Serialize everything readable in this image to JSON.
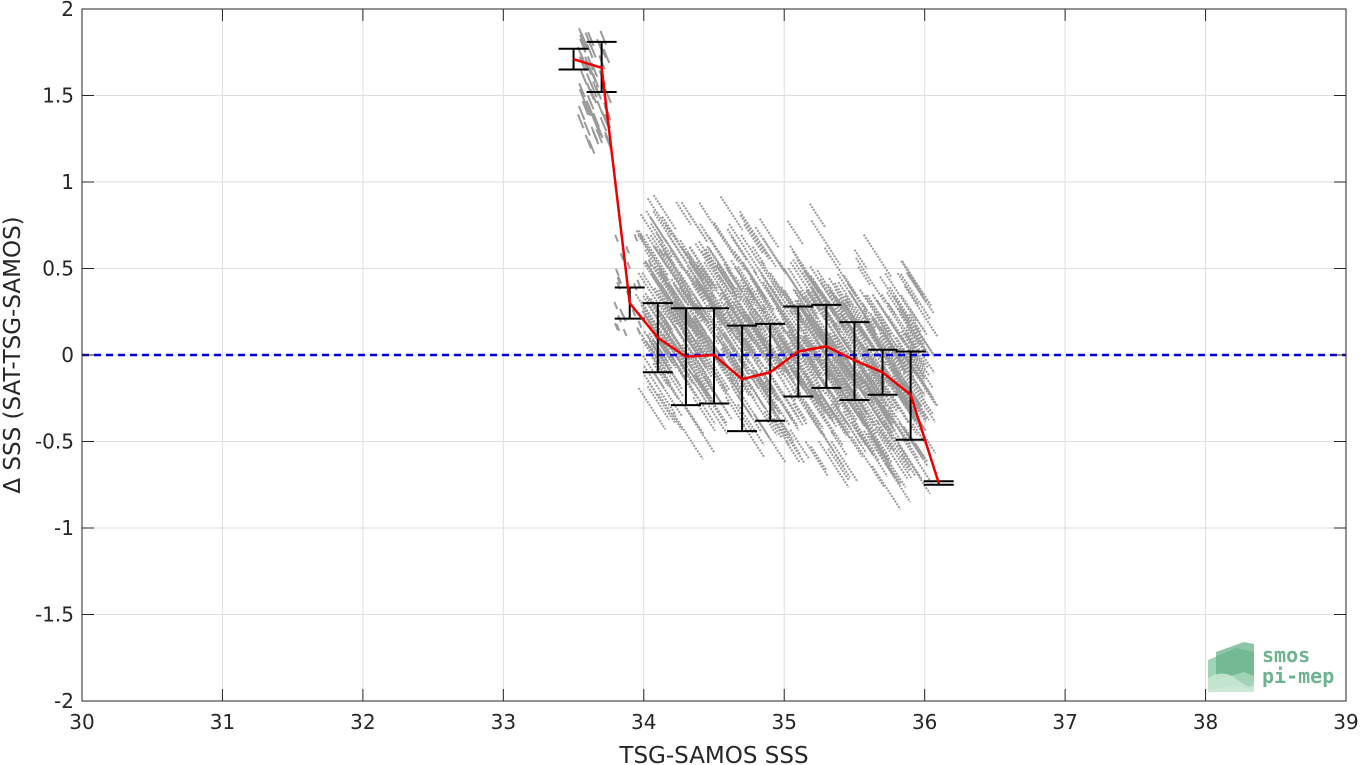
{
  "chart_data": {
    "type": "scatter",
    "xlabel": "TSG-SAMOS SSS",
    "ylabel": "Δ SSS (SAT-TSG-SAMOS)",
    "xlim": [
      30,
      39
    ],
    "ylim": [
      -2,
      2
    ],
    "x_ticks": [
      30,
      31,
      32,
      33,
      34,
      35,
      36,
      37,
      38,
      39
    ],
    "y_ticks": [
      -2,
      -1.5,
      -1,
      -0.5,
      0,
      0.5,
      1,
      1.5,
      2
    ],
    "y_tick_labels": [
      "-2",
      "-1.5",
      "-1",
      "-0.5",
      "0",
      "0.5",
      "1",
      "1.5",
      "2"
    ],
    "grid": true,
    "zero_line": {
      "y": 0,
      "color": "#0000dd",
      "style": "dashed"
    },
    "scatter_color": "#9a9a9a",
    "scatter_description_cloud": {
      "x_range": [
        33.5,
        36.1
      ],
      "y_range": [
        -0.95,
        1.88
      ]
    },
    "binned_mean": {
      "color": "#ee0000",
      "x": [
        33.5,
        33.7,
        33.9,
        34.1,
        34.3,
        34.5,
        34.7,
        34.9,
        35.1,
        35.3,
        35.5,
        35.7,
        35.9,
        36.1
      ],
      "y": [
        1.71,
        1.66,
        0.3,
        0.1,
        -0.01,
        0.0,
        -0.14,
        -0.1,
        0.02,
        0.05,
        -0.03,
        -0.1,
        -0.23,
        -0.74
      ]
    },
    "error_bars": {
      "color": "#000000",
      "x": [
        33.5,
        33.7,
        33.9,
        34.1,
        34.3,
        34.5,
        34.7,
        34.9,
        35.1,
        35.3,
        35.5,
        35.7,
        35.9,
        36.1
      ],
      "upper": [
        1.77,
        1.81,
        0.39,
        0.3,
        0.27,
        0.27,
        0.17,
        0.18,
        0.28,
        0.29,
        0.19,
        0.03,
        0.02,
        -0.73
      ],
      "lower": [
        1.65,
        1.52,
        0.21,
        -0.1,
        -0.29,
        -0.28,
        -0.44,
        -0.38,
        -0.24,
        -0.19,
        -0.26,
        -0.23,
        -0.49,
        -0.75
      ]
    },
    "logo": {
      "line1": "smos",
      "line2": "pi-mep",
      "color": "#6db38f"
    }
  }
}
